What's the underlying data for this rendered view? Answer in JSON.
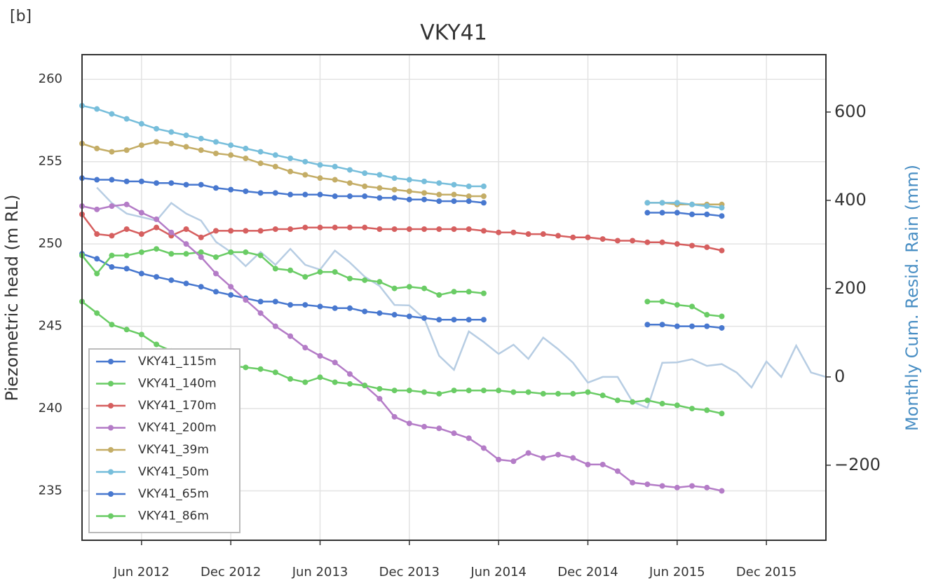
{
  "panel_label": "[b]",
  "chart_data": {
    "type": "line",
    "title": "VKY41",
    "ylabel": "Piezometric head (m RL)",
    "y2label": "Monthly Cum. Resid. Rain (mm)",
    "x": [
      "2012-02",
      "2012-03",
      "2012-04",
      "2012-05",
      "2012-06",
      "2012-07",
      "2012-08",
      "2012-09",
      "2012-10",
      "2012-11",
      "2012-12",
      "2013-01",
      "2013-02",
      "2013-03",
      "2013-04",
      "2013-05",
      "2013-06",
      "2013-07",
      "2013-08",
      "2013-09",
      "2013-10",
      "2013-11",
      "2013-12",
      "2014-01",
      "2014-02",
      "2014-03",
      "2014-04",
      "2014-05",
      "2014-06",
      "2014-07",
      "2014-08",
      "2014-09",
      "2014-10",
      "2014-11",
      "2014-12",
      "2015-01",
      "2015-02",
      "2015-03",
      "2015-04",
      "2015-05",
      "2015-06",
      "2015-07",
      "2015-08",
      "2015-09",
      "2015-10",
      "2015-11",
      "2015-12",
      "2016-01",
      "2016-02",
      "2016-03",
      "2016-04"
    ],
    "xlim": [
      "2012-02",
      "2016-04"
    ],
    "xticks": [
      {
        "value": "2012-06",
        "label": "Jun 2012"
      },
      {
        "value": "2012-12",
        "label": "Dec 2012"
      },
      {
        "value": "2013-06",
        "label": "Jun 2013"
      },
      {
        "value": "2013-12",
        "label": "Dec 2013"
      },
      {
        "value": "2014-06",
        "label": "Jun 2014"
      },
      {
        "value": "2014-12",
        "label": "Dec 2014"
      },
      {
        "value": "2015-06",
        "label": "Jun 2015"
      },
      {
        "value": "2015-12",
        "label": "Dec 2015"
      }
    ],
    "ylim": [
      232,
      261.5
    ],
    "yticks": [
      235,
      240,
      245,
      250,
      255,
      260
    ],
    "y2lim": [
      -370,
      730
    ],
    "y2ticks": [
      {
        "value": -200,
        "label": "−200"
      },
      0,
      200,
      400,
      600
    ],
    "grid": true,
    "legend": "lower left",
    "series": [
      {
        "axis": "y2",
        "color": "#b7cde3",
        "markers": false,
        "values": [
          null,
          429,
          394,
          370,
          362,
          354,
          394,
          370,
          354,
          306,
          283,
          251,
          283,
          254,
          290,
          254,
          243,
          286,
          259,
          227,
          206,
          163,
          162,
          132,
          48,
          16,
          103,
          79,
          52,
          73,
          41,
          89,
          63,
          32,
          -13,
          0,
          0,
          -56,
          -70,
          32,
          33,
          40,
          25,
          29,
          10,
          -24,
          35,
          0,
          71,
          10,
          0
        ]
      },
      {
        "name": "VKY41_115m",
        "color": "#4878cf",
        "values": [
          249.4,
          249.1,
          248.6,
          248.5,
          248.2,
          248.0,
          247.8,
          247.6,
          247.4,
          247.1,
          246.9,
          246.7,
          246.5,
          246.5,
          246.3,
          246.3,
          246.2,
          246.1,
          246.1,
          245.9,
          245.8,
          245.7,
          245.6,
          245.5,
          245.4,
          245.4,
          245.4,
          245.4,
          null,
          null,
          null,
          null,
          null,
          null,
          null,
          null,
          null,
          null,
          245.1,
          245.1,
          245.0,
          245.0,
          245.0,
          244.9,
          null,
          null,
          null,
          null,
          null,
          null,
          null
        ]
      },
      {
        "name": "VKY41_140m",
        "color": "#6acc65",
        "values": [
          249.3,
          248.2,
          249.3,
          249.3,
          249.5,
          249.7,
          249.4,
          249.4,
          249.5,
          249.2,
          249.5,
          249.5,
          249.3,
          248.5,
          248.4,
          248.0,
          248.3,
          248.3,
          247.9,
          247.8,
          247.7,
          247.3,
          247.4,
          247.3,
          246.9,
          247.1,
          247.1,
          247.0,
          null,
          null,
          null,
          null,
          null,
          null,
          null,
          null,
          null,
          null,
          246.5,
          246.5,
          246.3,
          246.2,
          245.7,
          245.6,
          null,
          null,
          null,
          null,
          null,
          null,
          null
        ]
      },
      {
        "name": "VKY41_170m",
        "color": "#d65f5f",
        "values": [
          251.8,
          250.6,
          250.5,
          250.9,
          250.6,
          251.0,
          250.5,
          250.9,
          250.4,
          250.8,
          250.8,
          250.8,
          250.8,
          250.9,
          250.9,
          251.0,
          251.0,
          251.0,
          251.0,
          251.0,
          250.9,
          250.9,
          250.9,
          250.9,
          250.9,
          250.9,
          250.9,
          250.8,
          250.7,
          250.7,
          250.6,
          250.6,
          250.5,
          250.4,
          250.4,
          250.3,
          250.2,
          250.2,
          250.1,
          250.1,
          250.0,
          249.9,
          249.8,
          249.6,
          null,
          null,
          null,
          null,
          null,
          null,
          null
        ]
      },
      {
        "name": "VKY41_200m",
        "color": "#b47cc7",
        "values": [
          252.3,
          252.1,
          252.3,
          252.4,
          251.9,
          251.5,
          250.7,
          250.0,
          249.2,
          248.2,
          247.4,
          246.6,
          245.8,
          245.0,
          244.4,
          243.7,
          243.2,
          242.8,
          242.1,
          241.4,
          240.6,
          239.5,
          239.1,
          238.9,
          238.8,
          238.5,
          238.2,
          237.6,
          236.9,
          236.8,
          237.3,
          237.0,
          237.2,
          237.0,
          236.6,
          236.6,
          236.2,
          235.5,
          235.4,
          235.3,
          235.2,
          235.3,
          235.2,
          235.0,
          null,
          null,
          null,
          null,
          null,
          null,
          null
        ]
      },
      {
        "name": "VKY41_39m",
        "color": "#c4ad66",
        "values": [
          256.1,
          255.8,
          255.6,
          255.7,
          256.0,
          256.2,
          256.1,
          255.9,
          255.7,
          255.5,
          255.4,
          255.2,
          254.9,
          254.7,
          254.4,
          254.2,
          254.0,
          253.9,
          253.7,
          253.5,
          253.4,
          253.3,
          253.2,
          253.1,
          253.0,
          253.0,
          252.9,
          252.9,
          null,
          null,
          null,
          null,
          null,
          null,
          null,
          null,
          null,
          null,
          252.5,
          252.5,
          252.4,
          252.4,
          252.4,
          252.4,
          null,
          null,
          null,
          null,
          null,
          null,
          null
        ]
      },
      {
        "name": "VKY41_50m",
        "color": "#77bedb",
        "values": [
          258.4,
          258.2,
          257.9,
          257.6,
          257.3,
          257.0,
          256.8,
          256.6,
          256.4,
          256.2,
          256.0,
          255.8,
          255.6,
          255.4,
          255.2,
          255.0,
          254.8,
          254.7,
          254.5,
          254.3,
          254.2,
          254.0,
          253.9,
          253.8,
          253.7,
          253.6,
          253.5,
          253.5,
          null,
          null,
          null,
          null,
          null,
          null,
          null,
          null,
          null,
          null,
          252.5,
          252.5,
          252.5,
          252.4,
          252.3,
          252.2,
          null,
          null,
          null,
          null,
          null,
          null,
          null
        ]
      },
      {
        "name": "VKY41_65m",
        "color": "#4878cf",
        "values": [
          254.0,
          253.9,
          253.9,
          253.8,
          253.8,
          253.7,
          253.7,
          253.6,
          253.6,
          253.4,
          253.3,
          253.2,
          253.1,
          253.1,
          253.0,
          253.0,
          253.0,
          252.9,
          252.9,
          252.9,
          252.8,
          252.8,
          252.7,
          252.7,
          252.6,
          252.6,
          252.6,
          252.5,
          null,
          null,
          null,
          null,
          null,
          null,
          null,
          null,
          null,
          null,
          251.9,
          251.9,
          251.9,
          251.8,
          251.8,
          251.7,
          null,
          null,
          null,
          null,
          null,
          null,
          null
        ]
      },
      {
        "name": "VKY41_86m",
        "color": "#6acc65",
        "values": [
          246.5,
          245.8,
          245.1,
          244.8,
          244.5,
          243.9,
          243.5,
          243.2,
          243.0,
          242.8,
          242.6,
          242.5,
          242.4,
          242.2,
          241.8,
          241.6,
          241.9,
          241.6,
          241.5,
          241.4,
          241.2,
          241.1,
          241.1,
          241.0,
          240.9,
          241.1,
          241.1,
          241.1,
          241.1,
          241.0,
          241.0,
          240.9,
          240.9,
          240.9,
          241.0,
          240.8,
          240.5,
          240.4,
          240.5,
          240.3,
          240.2,
          240.0,
          239.9,
          239.7,
          null,
          null,
          null,
          null,
          null,
          null,
          null
        ]
      }
    ]
  }
}
